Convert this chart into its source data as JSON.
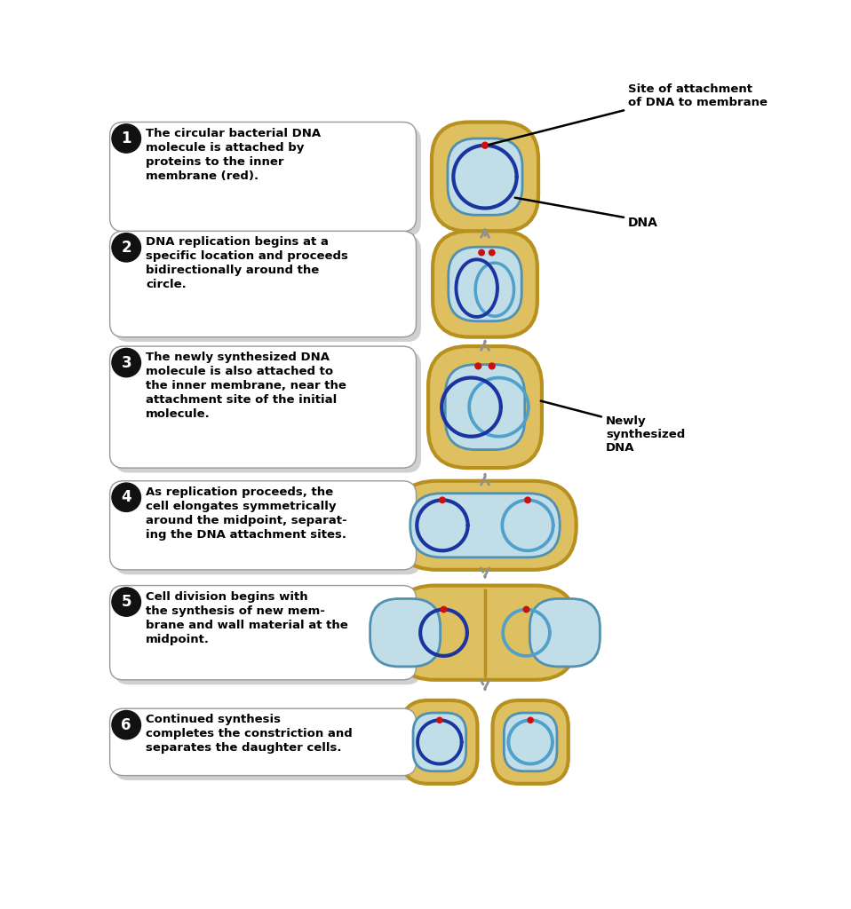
{
  "background_color": "#ffffff",
  "steps": [
    {
      "number": "1",
      "text": "The circular bacterial DNA\nmolecule is attached by\nproteins to the inner\nmembrane (red)."
    },
    {
      "number": "2",
      "text": "DNA replication begins at a\nspecific location and proceeds\nbidirectionally around the\ncircle."
    },
    {
      "number": "3",
      "text": "The newly synthesized DNA\nmolecule is also attached to\nthe inner membrane, near the\nattachment site of the initial\nmolecule."
    },
    {
      "number": "4",
      "text": "As replication proceeds, the\ncell elongates symmetrically\naround the midpoint, separat-\ning the DNA attachment sites."
    },
    {
      "number": "5",
      "text": "Cell division begins with\nthe synthesis of new mem-\nbrane and wall material at the\nmidpoint."
    },
    {
      "number": "6",
      "text": "Continued synthesis\ncompletes the constriction and\nseparates the daughter cells."
    }
  ],
  "cell_outer_color": "#dfc060",
  "cell_outer_border": "#b89020",
  "cell_inner_color": "#c0dde8",
  "cell_inner_border": "#5090b0",
  "dna_dark": "#1a35a0",
  "dna_light": "#50a0cc",
  "red_dot": "#cc1010",
  "arrow_gray": "#909090",
  "box_shadow": "#aaaaaa",
  "box_border": "#999999",
  "num_circle": "#111111",
  "num_text": "#ffffff",
  "ann_line": "#000000",
  "ann_text": "#000000"
}
